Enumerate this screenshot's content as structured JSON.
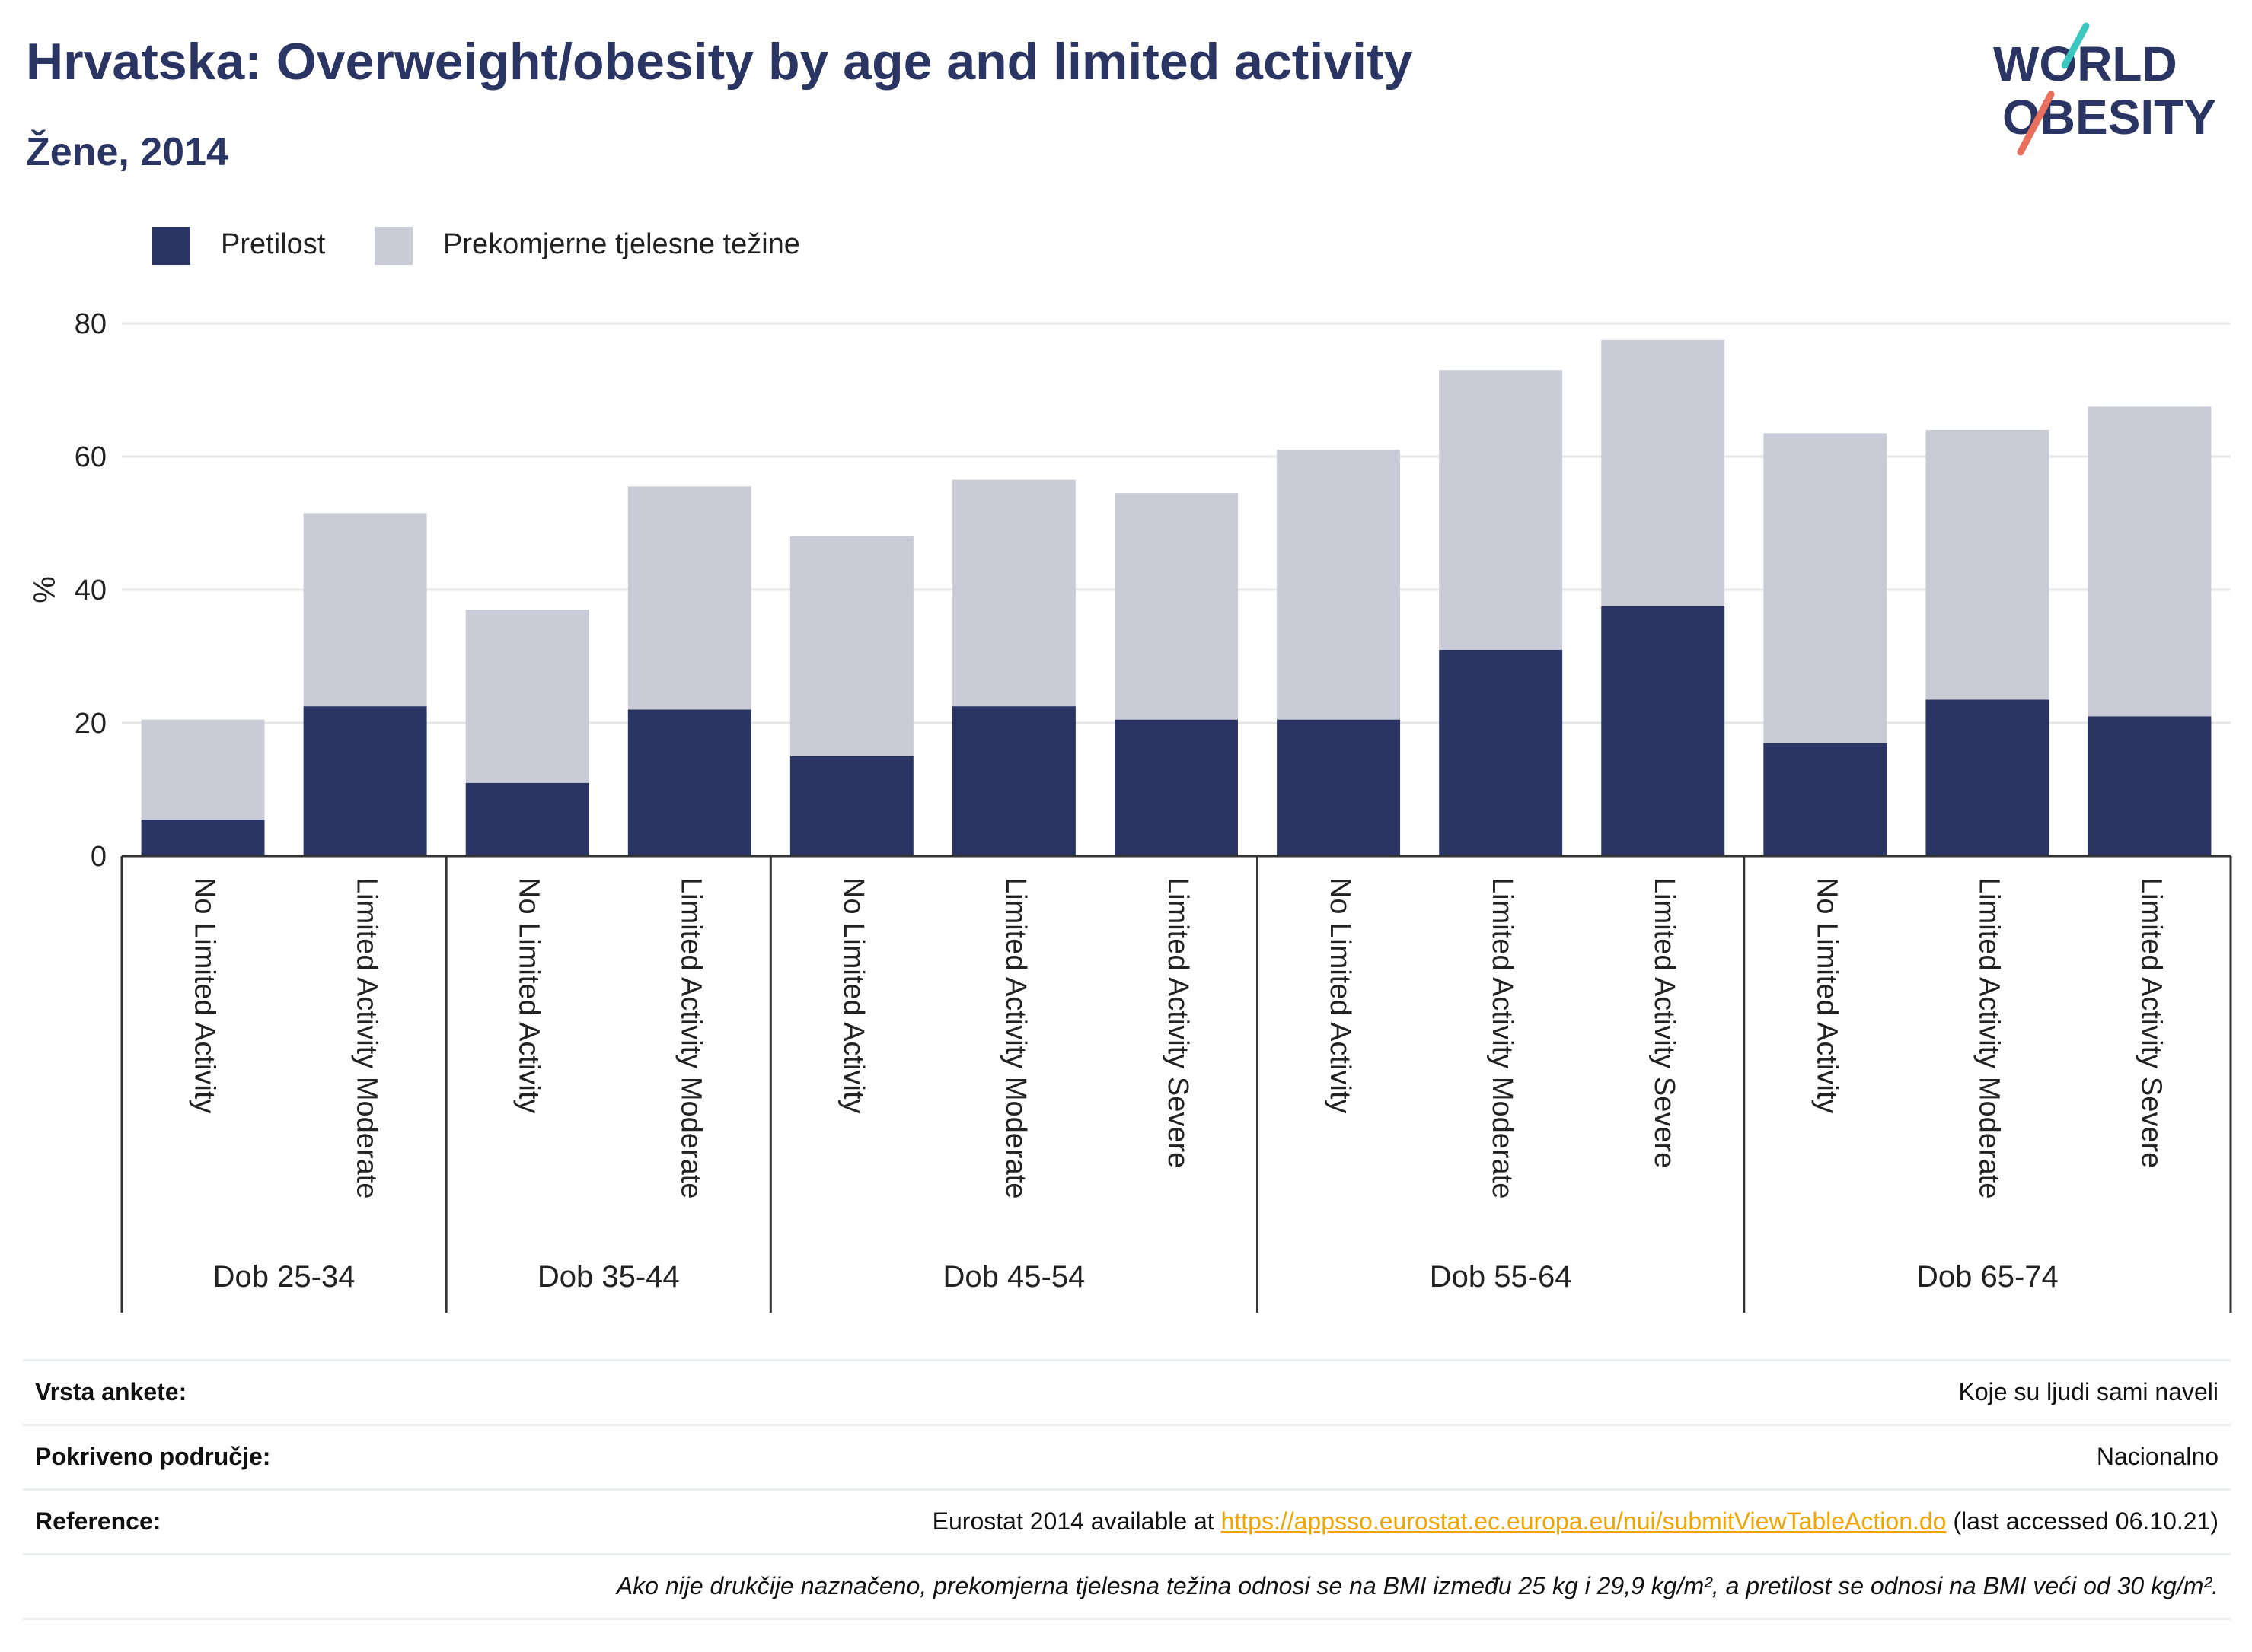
{
  "title": "Hrvatska: Overweight/obesity by age and limited activity",
  "subtitle": "Žene, 2014",
  "logo": {
    "line1": "WORLD",
    "line2": "OBESITY"
  },
  "colors": {
    "obesity": "#2a3563",
    "overweight": "#c9cbd6",
    "title": "#2a3563",
    "link": "#f0a500",
    "grid": "#e6e6e6"
  },
  "legend": [
    {
      "label": "Pretilost",
      "color": "#2a3563"
    },
    {
      "label": "Prekomjerne tjelesne težine",
      "color": "#c9cbd6"
    }
  ],
  "chart_data": {
    "type": "bar",
    "stacked": true,
    "ylabel": "%",
    "ylim": [
      0,
      80
    ],
    "yticks": [
      0,
      20,
      40,
      60,
      80
    ],
    "grid": true,
    "legend_position": "top-left",
    "groups": [
      {
        "label": "Dob 25-34",
        "categories": [
          "No Limited Activity",
          "Limited Activity Moderate"
        ]
      },
      {
        "label": "Dob 35-44",
        "categories": [
          "No Limited Activity",
          "Limited Activity Moderate"
        ]
      },
      {
        "label": "Dob 45-54",
        "categories": [
          "No Limited Activity",
          "Limited Activity Moderate",
          "Limited Activity Severe"
        ]
      },
      {
        "label": "Dob 55-64",
        "categories": [
          "No Limited Activity",
          "Limited Activity Moderate",
          "Limited Activity Severe"
        ]
      },
      {
        "label": "Dob 65-74",
        "categories": [
          "No Limited Activity",
          "Limited Activity Moderate",
          "Limited Activity Severe"
        ]
      }
    ],
    "series": [
      {
        "name": "Pretilost",
        "values": [
          5.5,
          22.5,
          11.0,
          22.0,
          15.0,
          22.5,
          20.5,
          20.5,
          31.0,
          37.5,
          17.0,
          23.5,
          21.0
        ]
      },
      {
        "name": "Prekomjerne tjelesne težine",
        "values": [
          15.0,
          29.0,
          26.0,
          33.5,
          33.0,
          34.0,
          34.0,
          40.5,
          42.0,
          40.0,
          46.5,
          40.5,
          46.5
        ]
      }
    ]
  },
  "info": {
    "survey_label": "Vrsta ankete:",
    "survey_value": "Koje su ljudi sami naveli",
    "area_label": "Pokriveno područje:",
    "area_value": "Nacionalno",
    "ref_label": "Reference:",
    "ref_prefix": "Eurostat 2014 available at ",
    "ref_link": "https://appsso.eurostat.ec.europa.eu/nui/submitViewTableAction.do",
    "ref_suffix": " (last accessed 06.10.21)",
    "note": "Ako nije drukčije naznačeno, prekomjerna tjelesna težina odnosi se na BMI između 25 kg i 29,9 kg/m², a pretilost se odnosi na BMI veći od 30 kg/m²."
  }
}
